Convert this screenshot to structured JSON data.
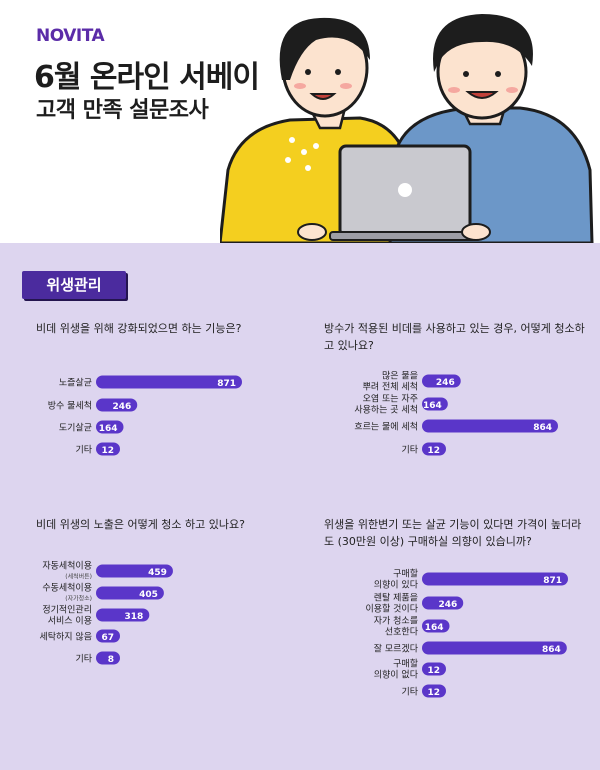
{
  "header": {
    "brand": "NOVITA",
    "title_line1": "6월 온라인 서베이",
    "title_line2": "고객 만족 설문조사"
  },
  "section": {
    "badge": "위생관리"
  },
  "colors": {
    "bar": "#5a36c9",
    "bg_main": "#ddd5ef",
    "badge": "#4b2b9e",
    "brand": "#5b2ca8"
  },
  "chart_data": [
    {
      "type": "bar",
      "title": "비데 위생을 위해 강화되었으면 하는 기능은?",
      "categories": [
        "노즐살균",
        "방수 물세척",
        "도기살균",
        "기타"
      ],
      "values": [
        871,
        246,
        164,
        12
      ]
    },
    {
      "type": "bar",
      "title": "방수가 적용된 비데를 사용하고 있는 경우, 어떻게 청소하고 있나요?",
      "categories": [
        "많은 물을 뿌려 전체 세척",
        "오염 또는 자주 사용하는 곳 세척",
        "흐르는 물에 세척",
        "기타"
      ],
      "values": [
        246,
        164,
        864,
        12
      ]
    },
    {
      "type": "bar",
      "title": "비데 위생의 노출은 어떻게 청소 하고 있나요?",
      "categories": [
        "자동세척이용 (세척버튼)",
        "수동세척이용 (자가청소)",
        "정기적인관리 서비스 이용",
        "세탁하지 않음",
        "기타"
      ],
      "values": [
        459,
        405,
        318,
        67,
        8
      ]
    },
    {
      "type": "bar",
      "title": "위생을 위한변기 또는 살균 기능이 있다면 가격이 높더라도 (30만원 이상) 구매하실 의향이 있습니까?",
      "categories": [
        "구매할 의향이 있다",
        "렌탈 제품을 이용할 것이다",
        "자가 청소를 선호한다",
        "잘 모르겠다",
        "구매할 의향이 없다",
        "기타"
      ],
      "values": [
        871,
        246,
        164,
        864,
        12,
        12
      ]
    }
  ]
}
